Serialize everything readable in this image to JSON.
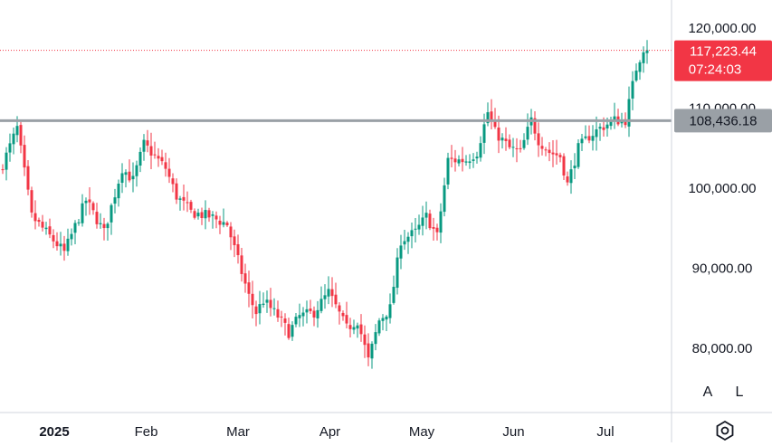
{
  "chart_data": {
    "type": "candlestick",
    "title": "",
    "xlabel": "",
    "ylabel": "",
    "ylim": [
      72000,
      123500
    ],
    "grid": false,
    "y_ticks": [
      {
        "value": 120000,
        "label": "120,000.00"
      },
      {
        "value": 110000,
        "label": "110,000.00"
      },
      {
        "value": 100000,
        "label": "100,000.00"
      },
      {
        "value": 90000,
        "label": "90,000.00"
      },
      {
        "value": 80000,
        "label": "80,000.00"
      }
    ],
    "x_ticks": [
      {
        "label": "2025",
        "bold": true
      },
      {
        "label": "Feb",
        "bold": false
      },
      {
        "label": "Mar",
        "bold": false
      },
      {
        "label": "Apr",
        "bold": false
      },
      {
        "label": "May",
        "bold": false
      },
      {
        "label": "Jun",
        "bold": false
      },
      {
        "label": "Jul",
        "bold": false
      }
    ],
    "last_price": {
      "value": 117223.44,
      "label": "117,223.44",
      "countdown": "07:24:03"
    },
    "horizontal_line": {
      "value": 108436.18,
      "label": "108,436.18"
    },
    "up_color": "#089981",
    "down_color": "#f23645",
    "key_closes": [
      [
        0,
        103000
      ],
      [
        4,
        107500
      ],
      [
        8,
        96500
      ],
      [
        13,
        94000
      ],
      [
        17,
        92000
      ],
      [
        23,
        98500
      ],
      [
        28,
        94500
      ],
      [
        33,
        102500
      ],
      [
        36,
        101000
      ],
      [
        39,
        105500
      ],
      [
        42,
        104000
      ],
      [
        45,
        102500
      ],
      [
        48,
        99000
      ],
      [
        52,
        97000
      ],
      [
        57,
        96500
      ],
      [
        62,
        95500
      ],
      [
        65,
        91000
      ],
      [
        68,
        86500
      ],
      [
        70,
        84500
      ],
      [
        72,
        86000
      ],
      [
        76,
        84000
      ],
      [
        79,
        82000
      ],
      [
        82,
        84000
      ],
      [
        86,
        84500
      ],
      [
        90,
        87000
      ],
      [
        95,
        82500
      ],
      [
        98,
        83500
      ],
      [
        101,
        78500
      ],
      [
        104,
        83500
      ],
      [
        107,
        85000
      ],
      [
        110,
        93500
      ],
      [
        114,
        94500
      ],
      [
        117,
        96500
      ],
      [
        120,
        94000
      ],
      [
        123,
        103500
      ],
      [
        128,
        103500
      ],
      [
        131,
        104500
      ],
      [
        134,
        109500
      ],
      [
        136,
        107000
      ],
      [
        140,
        105000
      ],
      [
        143,
        104500
      ],
      [
        146,
        108500
      ],
      [
        148,
        106000
      ],
      [
        151,
        104500
      ],
      [
        154,
        104000
      ],
      [
        156,
        100500
      ],
      [
        159,
        105000
      ],
      [
        162,
        106500
      ],
      [
        165,
        107500
      ],
      [
        169,
        108500
      ],
      [
        172,
        108500
      ],
      [
        175,
        115000
      ],
      [
        177,
        117500
      ],
      [
        178,
        117223
      ]
    ]
  }
}
